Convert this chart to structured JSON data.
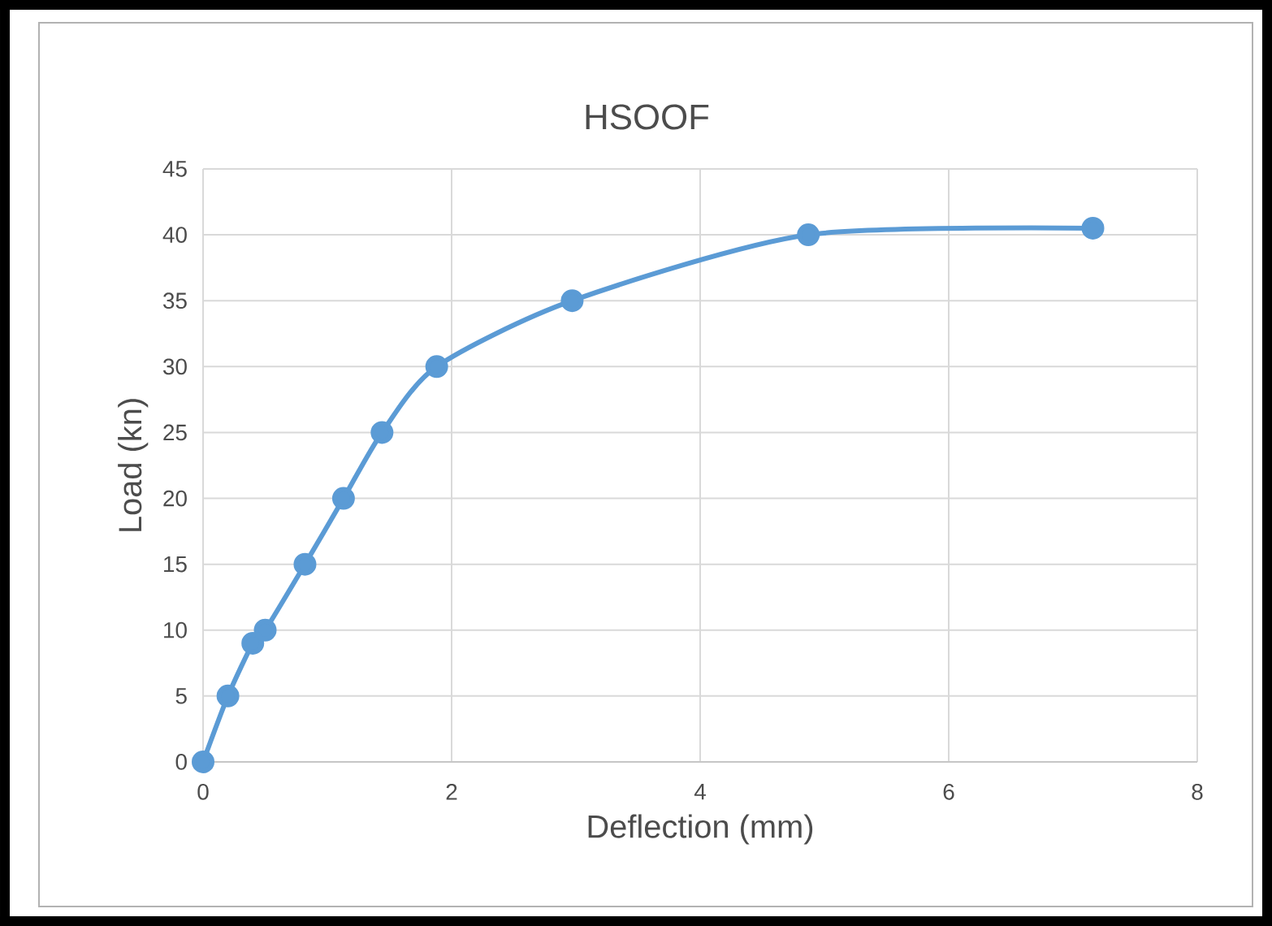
{
  "chart_data": {
    "type": "line",
    "title": "HSOOF",
    "xlabel": "Deflection (mm)",
    "ylabel": "Load (kn)",
    "series": [
      {
        "color": "#5b9bd5",
        "x": [
          0,
          0.2,
          0.4,
          0.5,
          0.82,
          1.13,
          1.44,
          1.88,
          2.97,
          4.87,
          7.16
        ],
        "values": [
          0,
          5,
          9,
          10,
          15,
          20,
          25,
          30,
          35,
          40,
          40.5
        ]
      }
    ],
    "xlim": [
      0,
      8
    ],
    "xticks": [
      0,
      2,
      4,
      6,
      8
    ],
    "ylim": [
      0,
      45
    ],
    "yticks": [
      0,
      5,
      10,
      15,
      20,
      25,
      30,
      35,
      40,
      45
    ],
    "grid": true,
    "marker": "circle",
    "line_style": "solid"
  }
}
